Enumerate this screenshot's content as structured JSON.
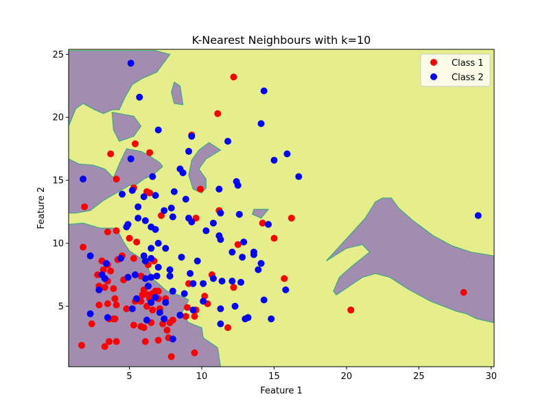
{
  "chart_data": {
    "type": "scatter",
    "title": "K-Nearest Neighbours with k=10",
    "xlabel": "Feature 1",
    "ylabel": "Feature 2",
    "xlim": [
      0.8,
      30.2
    ],
    "ylim": [
      0.2,
      25.4
    ],
    "xticks": [
      5,
      10,
      15,
      20,
      25,
      30
    ],
    "yticks": [
      5,
      10,
      15,
      20,
      25
    ],
    "grid": false,
    "legend_position": "top-right",
    "background_colors": {
      "class_1_region": "#e6ed8b",
      "class_2_region": "#a28db0",
      "boundary": "#3fa884"
    },
    "class_2_regions": [
      [
        [
          0.8,
          25.3
        ],
        [
          6.8,
          25.3
        ],
        [
          7.8,
          25.0
        ],
        [
          6.9,
          23.6
        ],
        [
          5.9,
          23.1
        ],
        [
          5.2,
          22.6
        ],
        [
          4.7,
          21.6
        ],
        [
          4.3,
          20.6
        ],
        [
          3.8,
          20.6
        ],
        [
          3.2,
          20.3
        ],
        [
          2.6,
          20.6
        ],
        [
          1.8,
          21.1
        ],
        [
          1.3,
          20.7
        ],
        [
          0.8,
          19.3
        ]
      ],
      [
        [
          0.8,
          16.7
        ],
        [
          1.5,
          16.3
        ],
        [
          2.5,
          16.2
        ],
        [
          3.3,
          15.9
        ],
        [
          3.9,
          15.2
        ],
        [
          4.3,
          16.3
        ],
        [
          4.8,
          17.5
        ],
        [
          5.8,
          17.3
        ],
        [
          6.3,
          17.0
        ],
        [
          7.1,
          16.4
        ],
        [
          7.3,
          16.1
        ],
        [
          6.7,
          15.5
        ],
        [
          6.0,
          15.1
        ],
        [
          5.4,
          14.6
        ],
        [
          5.0,
          14.6
        ],
        [
          4.1,
          14.0
        ],
        [
          3.2,
          13.4
        ],
        [
          2.3,
          12.6
        ],
        [
          1.3,
          12.4
        ],
        [
          0.8,
          12.4
        ]
      ],
      [
        [
          10.5,
          18.0
        ],
        [
          11.3,
          17.4
        ],
        [
          10.3,
          16.7
        ],
        [
          9.8,
          15.9
        ],
        [
          10.3,
          15.1
        ],
        [
          10.3,
          14.4
        ],
        [
          10.0,
          14.0
        ],
        [
          9.4,
          14.3
        ],
        [
          9.1,
          15.4
        ],
        [
          9.3,
          16.6
        ],
        [
          9.8,
          17.4
        ]
      ],
      [
        [
          3.8,
          20.4
        ],
        [
          5.3,
          20.1
        ],
        [
          5.8,
          19.3
        ],
        [
          5.3,
          18.5
        ],
        [
          4.3,
          18.1
        ],
        [
          3.9,
          19.0
        ]
      ],
      [
        [
          8.1,
          22.8
        ],
        [
          8.5,
          22.5
        ],
        [
          8.7,
          21.0
        ],
        [
          8.1,
          21.1
        ],
        [
          7.9,
          22.0
        ]
      ],
      [
        [
          13.6,
          12.7
        ],
        [
          14.6,
          12.7
        ],
        [
          14.1,
          12.0
        ],
        [
          13.5,
          12.3
        ]
      ],
      [
        [
          0.8,
          11.5
        ],
        [
          1.8,
          11.6
        ],
        [
          3.0,
          11.2
        ],
        [
          4.1,
          11.2
        ],
        [
          4.6,
          10.1
        ],
        [
          5.0,
          9.4
        ],
        [
          5.8,
          8.8
        ],
        [
          6.3,
          8.0
        ],
        [
          6.6,
          7.2
        ],
        [
          7.1,
          6.7
        ],
        [
          7.6,
          6.2
        ],
        [
          8.6,
          5.8
        ],
        [
          9.1,
          5.5
        ],
        [
          8.8,
          4.9
        ],
        [
          8.6,
          4.4
        ],
        [
          9.1,
          3.7
        ],
        [
          10.0,
          3.3
        ],
        [
          10.1,
          2.5
        ],
        [
          11.1,
          1.7
        ],
        [
          11.3,
          0.2
        ],
        [
          0.8,
          0.2
        ]
      ],
      [
        [
          18.6,
          8.6
        ],
        [
          21.3,
          12.0
        ],
        [
          22.0,
          13.3
        ],
        [
          22.5,
          13.6
        ],
        [
          23.1,
          13.6
        ],
        [
          23.6,
          12.8
        ],
        [
          24.6,
          11.8
        ],
        [
          26.0,
          10.6
        ],
        [
          27.3,
          9.8
        ],
        [
          28.6,
          9.3
        ],
        [
          30.2,
          9.0
        ],
        [
          30.2,
          3.7
        ],
        [
          29.0,
          4.0
        ],
        [
          28.3,
          4.4
        ],
        [
          27.6,
          4.6
        ],
        [
          25.8,
          5.4
        ],
        [
          24.2,
          6.4
        ],
        [
          23.0,
          7.3
        ],
        [
          22.0,
          7.6
        ],
        [
          21.1,
          7.3
        ],
        [
          20.2,
          6.6
        ],
        [
          19.3,
          5.9
        ],
        [
          19.1,
          6.2
        ],
        [
          19.5,
          7.3
        ],
        [
          20.5,
          8.3
        ],
        [
          21.6,
          9.3
        ],
        [
          21.1,
          9.9
        ],
        [
          20.0,
          9.6
        ]
      ]
    ],
    "series": [
      {
        "name": "Class 1",
        "color": "#ff0000",
        "points": [
          [
            12.2,
            23.2
          ],
          [
            11.1,
            20.3
          ],
          [
            9.3,
            18.6
          ],
          [
            3.7,
            17.1
          ],
          [
            5.4,
            17.9
          ],
          [
            6.4,
            17.2
          ],
          [
            4.1,
            15.1
          ],
          [
            5.3,
            14.4
          ],
          [
            6.2,
            14.1
          ],
          [
            6.4,
            14.0
          ],
          [
            9.9,
            14.3
          ],
          [
            1.9,
            12.9
          ],
          [
            7.2,
            12.2
          ],
          [
            9.6,
            12.0
          ],
          [
            11.2,
            12.6
          ],
          [
            14.2,
            11.6
          ],
          [
            16.2,
            12.0
          ],
          [
            3.5,
            10.9
          ],
          [
            4.1,
            11.0
          ],
          [
            5.0,
            10.4
          ],
          [
            5.5,
            10.1
          ],
          [
            12.5,
            9.9
          ],
          [
            15.0,
            10.4
          ],
          [
            1.8,
            9.7
          ],
          [
            3.1,
            8.6
          ],
          [
            3.5,
            8.3
          ],
          [
            4.2,
            8.7
          ],
          [
            4.5,
            9.0
          ],
          [
            5.3,
            8.8
          ],
          [
            6.3,
            8.3
          ],
          [
            6.7,
            8.6
          ],
          [
            5.8,
            7.4
          ],
          [
            6.5,
            7.3
          ],
          [
            3.2,
            7.9
          ],
          [
            3.7,
            7.8
          ],
          [
            3.5,
            7.0
          ],
          [
            2.8,
            7.5
          ],
          [
            2.9,
            6.6
          ],
          [
            3.3,
            6.5
          ],
          [
            4.6,
            7.1
          ],
          [
            4.9,
            7.3
          ],
          [
            3.9,
            6.4
          ],
          [
            6.0,
            6.3
          ],
          [
            6.8,
            6.2
          ],
          [
            7.0,
            6.2
          ],
          [
            5.9,
            5.9
          ],
          [
            6.3,
            5.9
          ],
          [
            6.6,
            6.0
          ],
          [
            5.8,
            5.4
          ],
          [
            6.4,
            5.6
          ],
          [
            7.0,
            5.6
          ],
          [
            7.5,
            5.6
          ],
          [
            2.9,
            5.1
          ],
          [
            3.5,
            5.2
          ],
          [
            4.0,
            5.6
          ],
          [
            4.1,
            5.1
          ],
          [
            4.8,
            4.8
          ],
          [
            5.4,
            5.4
          ],
          [
            6.2,
            5.0
          ],
          [
            6.6,
            4.7
          ],
          [
            7.1,
            4.8
          ],
          [
            9.1,
            6.8
          ],
          [
            10.7,
            7.5
          ],
          [
            10.2,
            5.8
          ],
          [
            10.4,
            5.2
          ],
          [
            12.2,
            6.5
          ],
          [
            9.0,
            4.9
          ],
          [
            9.6,
            4.7
          ],
          [
            2.4,
            3.6
          ],
          [
            3.6,
            4.0
          ],
          [
            3.9,
            4.0
          ],
          [
            4.0,
            4.0
          ],
          [
            5.3,
            3.5
          ],
          [
            5.8,
            3.4
          ],
          [
            6.0,
            3.3
          ],
          [
            6.5,
            3.7
          ],
          [
            7.3,
            3.6
          ],
          [
            7.6,
            3.1
          ],
          [
            8.0,
            3.9
          ],
          [
            7.8,
            3.7
          ],
          [
            8.9,
            4.2
          ],
          [
            9.5,
            4.2
          ],
          [
            11.8,
            3.3
          ],
          [
            3.3,
            1.8
          ],
          [
            3.6,
            2.2
          ],
          [
            4.1,
            2.2
          ],
          [
            6.1,
            2.2
          ],
          [
            7.0,
            2.3
          ],
          [
            7.7,
            2.5
          ],
          [
            7.9,
            1.0
          ],
          [
            1.7,
            1.9
          ],
          [
            9.5,
            1.3
          ],
          [
            15.7,
            7.2
          ],
          [
            20.3,
            4.7
          ],
          [
            28.1,
            6.1
          ]
        ]
      },
      {
        "name": "Class 2",
        "color": "#0000ff",
        "points": [
          [
            5.1,
            24.3
          ],
          [
            14.3,
            22.1
          ],
          [
            5.7,
            21.6
          ],
          [
            7.0,
            19.0
          ],
          [
            11.8,
            18.1
          ],
          [
            14.1,
            19.5
          ],
          [
            9.3,
            18.5
          ],
          [
            9.1,
            17.3
          ],
          [
            15.9,
            17.1
          ],
          [
            15.0,
            16.6
          ],
          [
            5.1,
            16.7
          ],
          [
            8.5,
            15.9
          ],
          [
            8.7,
            15.6
          ],
          [
            16.7,
            15.3
          ],
          [
            1.8,
            15.1
          ],
          [
            6.6,
            15.3
          ],
          [
            12.4,
            14.9
          ],
          [
            12.5,
            14.6
          ],
          [
            11.2,
            14.3
          ],
          [
            4.5,
            13.9
          ],
          [
            5.2,
            14.2
          ],
          [
            8.1,
            14.1
          ],
          [
            8.9,
            13.5
          ],
          [
            6.0,
            13.7
          ],
          [
            6.8,
            13.8
          ],
          [
            5.6,
            12.9
          ],
          [
            7.4,
            12.6
          ],
          [
            7.9,
            12.8
          ],
          [
            8.0,
            12.1
          ],
          [
            9.1,
            12.0
          ],
          [
            12.6,
            12.3
          ],
          [
            9.3,
            11.7
          ],
          [
            10.8,
            11.6
          ],
          [
            11.3,
            12.4
          ],
          [
            14.6,
            11.5
          ],
          [
            5.6,
            12.0
          ],
          [
            6.1,
            11.8
          ],
          [
            6.5,
            11.3
          ],
          [
            4.8,
            11.3
          ],
          [
            4.9,
            11.5
          ],
          [
            6.8,
            11.1
          ],
          [
            10.3,
            11.0
          ],
          [
            11.2,
            10.6
          ],
          [
            11.3,
            10.3
          ],
          [
            7.0,
            10.0
          ],
          [
            7.5,
            9.6
          ],
          [
            6.5,
            9.6
          ],
          [
            12.9,
            10.1
          ],
          [
            12.1,
            9.3
          ],
          [
            13.6,
            9.3
          ],
          [
            13.6,
            9.1
          ],
          [
            12.8,
            8.9
          ],
          [
            8.6,
            8.9
          ],
          [
            9.7,
            8.6
          ],
          [
            6.0,
            9.0
          ],
          [
            6.1,
            8.6
          ],
          [
            6.5,
            8.8
          ],
          [
            7.0,
            8.1
          ],
          [
            3.4,
            8.4
          ],
          [
            4.4,
            8.8
          ],
          [
            2.3,
            9.0
          ],
          [
            14.1,
            8.4
          ],
          [
            13.9,
            7.9
          ],
          [
            9.2,
            7.6
          ],
          [
            7.8,
            7.9
          ],
          [
            10.8,
            7.2
          ],
          [
            11.4,
            7.0
          ],
          [
            12.1,
            7.0
          ],
          [
            7.8,
            7.4
          ],
          [
            6.9,
            7.4
          ],
          [
            6.1,
            7.2
          ],
          [
            5.4,
            7.5
          ],
          [
            3.1,
            7.5
          ],
          [
            3.3,
            7.2
          ],
          [
            4.9,
            7.3
          ],
          [
            6.5,
            7.3
          ],
          [
            2.9,
            6.3
          ],
          [
            6.3,
            6.6
          ],
          [
            8.0,
            6.2
          ],
          [
            8.8,
            6.0
          ],
          [
            10.1,
            5.4
          ],
          [
            10.1,
            6.8
          ],
          [
            12.7,
            6.9
          ],
          [
            15.8,
            6.3
          ],
          [
            14.3,
            5.5
          ],
          [
            11.3,
            4.8
          ],
          [
            12.3,
            5.0
          ],
          [
            6.5,
            5.3
          ],
          [
            6.8,
            5.7
          ],
          [
            7.5,
            5.3
          ],
          [
            7.1,
            4.5
          ],
          [
            5.2,
            4.8
          ],
          [
            5.5,
            5.6
          ],
          [
            2.3,
            4.4
          ],
          [
            3.5,
            4.1
          ],
          [
            6.2,
            3.9
          ],
          [
            7.4,
            4.0
          ],
          [
            8.5,
            4.3
          ],
          [
            9.4,
            4.7
          ],
          [
            11.3,
            3.6
          ],
          [
            13.0,
            4.0
          ],
          [
            13.2,
            4.1
          ],
          [
            14.8,
            4.0
          ],
          [
            8.0,
            2.4
          ],
          [
            29.1,
            12.2
          ],
          [
            9.4,
            6.8
          ]
        ]
      }
    ]
  }
}
